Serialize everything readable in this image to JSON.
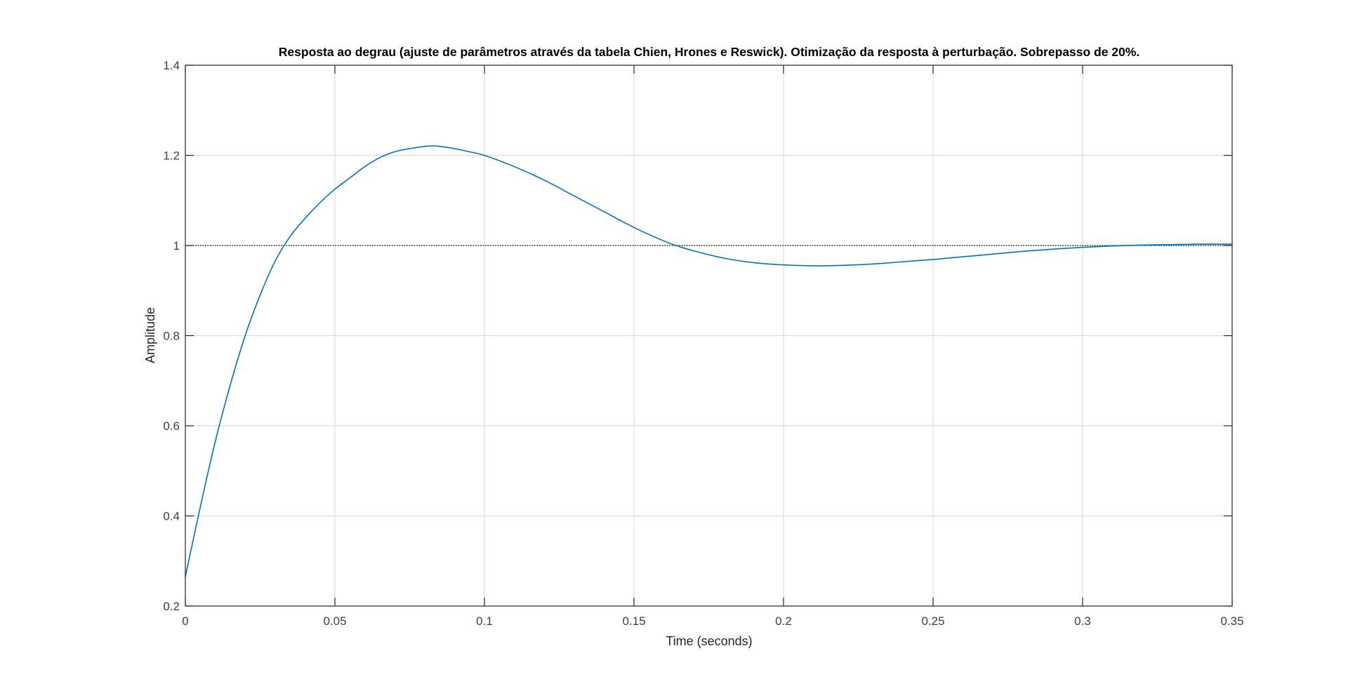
{
  "chart_data": {
    "type": "line",
    "title": "Resposta ao degrau (ajuste de parâmetros através da tabela Chien, Hrones e Reswick). Otimização da resposta à perturbação. Sobrepasso de 20%.",
    "xlabel": "Time (seconds)",
    "ylabel": "Amplitude",
    "xlim": [
      0,
      0.35
    ],
    "ylim": [
      0.2,
      1.4
    ],
    "xticks": [
      0,
      0.05,
      0.1,
      0.15,
      0.2,
      0.25,
      0.3,
      0.35
    ],
    "xtick_labels": [
      "0",
      "0.05",
      "0.1",
      "0.15",
      "0.2",
      "0.25",
      "0.3",
      "0.35"
    ],
    "yticks": [
      0.2,
      0.4,
      0.6,
      0.8,
      1.0,
      1.2,
      1.4
    ],
    "ytick_labels": [
      "0.2",
      "0.4",
      "0.6",
      "0.8",
      "1",
      "1.2",
      "1.4"
    ],
    "grid": true,
    "reference_line": {
      "y": 1.0,
      "style": "dotted",
      "color": "#000000"
    },
    "series": [
      {
        "color": "#0072BD",
        "x": [
          0,
          0.005,
          0.01,
          0.015,
          0.02,
          0.025,
          0.03,
          0.035,
          0.04,
          0.045,
          0.05,
          0.055,
          0.06,
          0.065,
          0.07,
          0.075,
          0.08,
          0.083,
          0.085,
          0.09,
          0.095,
          0.1,
          0.11,
          0.12,
          0.13,
          0.14,
          0.15,
          0.16,
          0.165,
          0.17,
          0.18,
          0.19,
          0.2,
          0.21,
          0.22,
          0.23,
          0.24,
          0.25,
          0.26,
          0.27,
          0.28,
          0.29,
          0.3,
          0.31,
          0.32,
          0.33,
          0.34,
          0.35
        ],
        "y": [
          0.265,
          0.42,
          0.565,
          0.69,
          0.8,
          0.89,
          0.965,
          1.02,
          1.06,
          1.095,
          1.125,
          1.15,
          1.175,
          1.195,
          1.208,
          1.215,
          1.22,
          1.221,
          1.22,
          1.215,
          1.208,
          1.2,
          1.175,
          1.145,
          1.11,
          1.075,
          1.04,
          1.01,
          0.998,
          0.988,
          0.972,
          0.962,
          0.957,
          0.955,
          0.956,
          0.959,
          0.964,
          0.969,
          0.975,
          0.981,
          0.987,
          0.992,
          0.996,
          0.999,
          1.001,
          1.002,
          1.003,
          1.003
        ]
      }
    ]
  }
}
